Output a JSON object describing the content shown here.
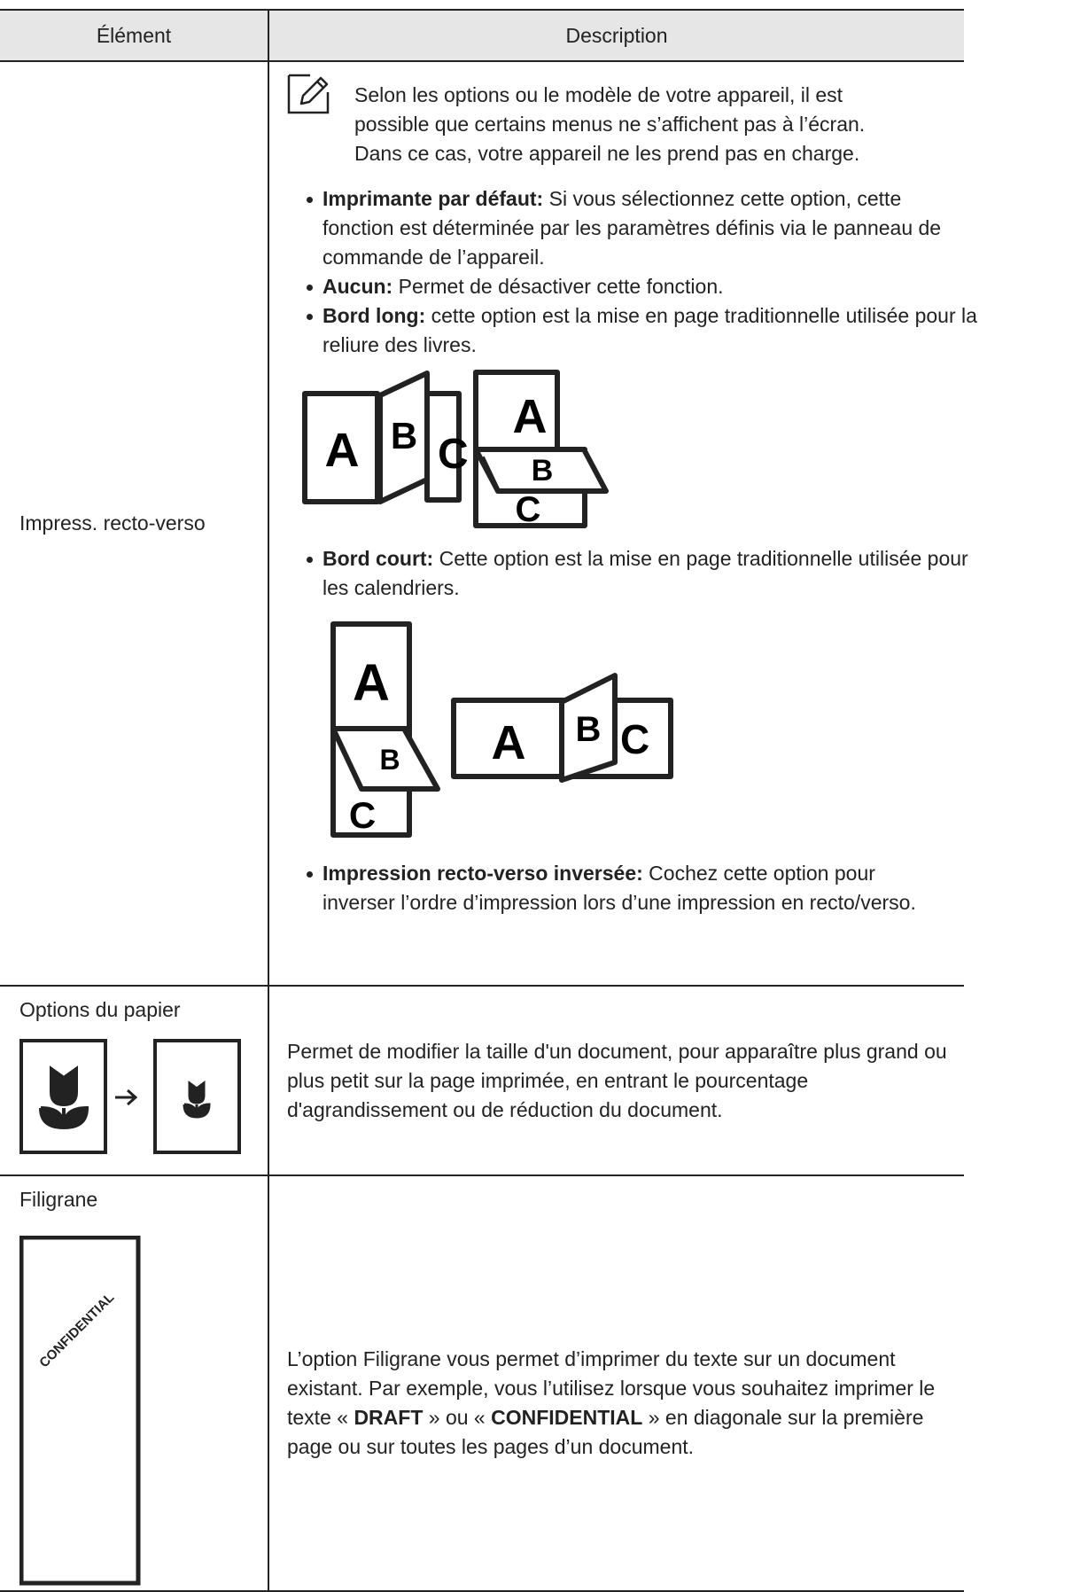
{
  "table": {
    "header": [
      "Élément",
      "Description"
    ],
    "rows": [
      {
        "element": "Impress. recto-verso",
        "note": "Selon les options ou le modèle de votre appareil, il est possible que certains menus ne s’affichent pas à l’écran. Dans ce cas, votre appareil ne les prend pas en charge.",
        "items": [
          {
            "term": "Imprimante par défaut:",
            "text": "Si vous sélectionnez cette option, cette fonction est déterminée par les paramètres définis via le panneau de commande de l’appareil."
          },
          {
            "term": "Aucun:",
            "text": "Permet de désactiver cette fonction."
          },
          {
            "term": "Bord long:",
            "text": "cette option est la mise en page traditionnelle utilisée pour la reliure des livres."
          },
          {
            "term": "Bord court:",
            "text": "Cette option est la mise en page traditionnelle utilisée pour les calendriers."
          },
          {
            "term": "Impression recto-verso inversée:",
            "text": "Cochez cette option pour inverser l’ordre d’impression lors d’une impression en recto/verso."
          }
        ],
        "illustration_letters": [
          "A",
          "B",
          "C"
        ]
      },
      {
        "element": "Options du papier",
        "description": "Permet de modifier la taille d'un document, pour apparaître plus grand ou plus petit sur la page imprimée, en entrant le pourcentage d'agrandissement ou de réduction du document."
      },
      {
        "element": "Filigrane",
        "description_parts": [
          "L’option Filigrane vous permet d’imprimer du texte sur un document existant. Par exemple, vous l’utilisez lorsque vous souhaitez imprimer le texte « ",
          "DRAFT",
          " » ou « ",
          "CONFIDENTIAL",
          " » en diagonale sur la première page ou sur toutes les pages d’un document."
        ],
        "watermark": "CONFIDENTIAL"
      }
    ]
  }
}
